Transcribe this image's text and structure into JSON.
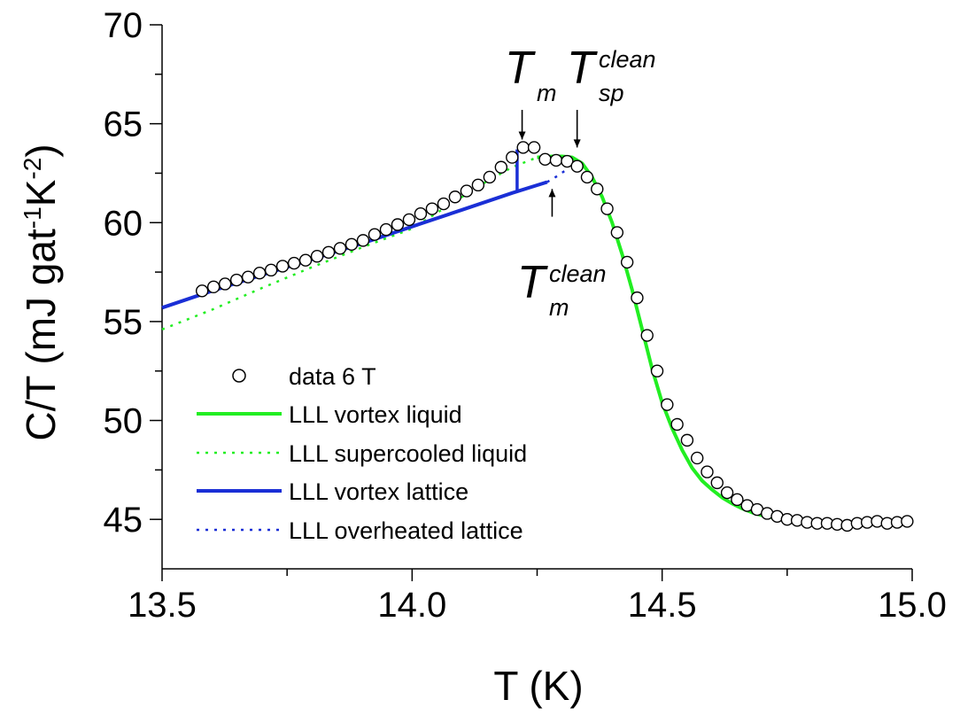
{
  "chart_data": {
    "type": "scatter",
    "xlabel": "T (K)",
    "ylabel": {
      "main": "C/T (mJ gat",
      "sup1": "-1",
      "mid": "K",
      "sup2": "-2",
      "end": ")"
    },
    "xlim": [
      13.5,
      15.0
    ],
    "ylim": [
      42.5,
      70
    ],
    "x_ticks": [
      "13.5",
      "14.0",
      "14.5",
      "15.0"
    ],
    "x_tick_values": [
      13.5,
      14.0,
      14.5,
      15.0
    ],
    "y_ticks": [
      "45",
      "50",
      "55",
      "60",
      "65",
      "70"
    ],
    "y_tick_values": [
      45,
      50,
      55,
      60,
      65,
      70
    ],
    "grid": false,
    "legend_position": "bottom-left",
    "annotations": [
      {
        "id": "tm",
        "main": "T",
        "sub": "m",
        "sup": "",
        "arrow_x": 14.22,
        "arrow_from": 65.7,
        "arrow_to": 64.2
      },
      {
        "id": "tsp",
        "main": "T",
        "sub": "sp",
        "sup": "clean",
        "arrow_x": 14.33,
        "arrow_from": 65.7,
        "arrow_to": 63.8
      },
      {
        "id": "tmclean",
        "main": "T",
        "sub": "m",
        "sup": "clean",
        "arrow_x": 14.28,
        "arrow_from": 60.3,
        "arrow_to": 61.7
      }
    ],
    "series": [
      {
        "name": "data 6 T",
        "style": "open-circle",
        "color": "#000000",
        "x": [
          13.58,
          13.603,
          13.626,
          13.649,
          13.672,
          13.695,
          13.718,
          13.741,
          13.764,
          13.787,
          13.81,
          13.833,
          13.856,
          13.879,
          13.902,
          13.925,
          13.948,
          13.971,
          13.994,
          14.017,
          14.04,
          14.063,
          14.086,
          14.109,
          14.132,
          14.155,
          14.178,
          14.2,
          14.222,
          14.244,
          14.266,
          14.288,
          14.31,
          14.33,
          14.35,
          14.37,
          14.39,
          14.41,
          14.43,
          14.45,
          14.47,
          14.49,
          14.51,
          14.53,
          14.55,
          14.57,
          14.59,
          14.61,
          14.63,
          14.65,
          14.67,
          14.69,
          14.71,
          14.73,
          14.75,
          14.77,
          14.79,
          14.81,
          14.83,
          14.85,
          14.87,
          14.89,
          14.91,
          14.93,
          14.95,
          14.97,
          14.99
        ],
        "y": [
          56.55,
          56.75,
          56.9,
          57.1,
          57.25,
          57.45,
          57.6,
          57.8,
          57.95,
          58.1,
          58.3,
          58.5,
          58.7,
          58.9,
          59.1,
          59.4,
          59.65,
          59.9,
          60.15,
          60.45,
          60.7,
          60.95,
          61.3,
          61.6,
          61.9,
          62.3,
          62.8,
          63.3,
          63.8,
          63.8,
          63.2,
          63.15,
          63.1,
          62.85,
          62.3,
          61.7,
          60.7,
          59.5,
          58.0,
          56.2,
          54.3,
          52.5,
          50.8,
          49.8,
          49.0,
          48.1,
          47.4,
          46.85,
          46.35,
          46.0,
          45.7,
          45.5,
          45.3,
          45.15,
          45.0,
          44.95,
          44.85,
          44.8,
          44.8,
          44.75,
          44.7,
          44.8,
          44.85,
          44.9,
          44.8,
          44.85,
          44.9
        ]
      },
      {
        "name": "LLL vortex liquid",
        "style": "solid",
        "color": "#22ee22",
        "x": [
          14.25,
          14.28,
          14.3,
          14.32,
          14.34,
          14.36,
          14.38,
          14.4,
          14.42,
          14.44,
          14.46,
          14.48,
          14.5,
          14.52,
          14.54,
          14.56,
          14.58,
          14.6,
          14.62,
          14.64,
          14.66,
          14.68,
          14.7,
          14.72,
          14.74,
          14.76,
          14.78,
          14.8,
          14.83
        ],
        "y": [
          63.3,
          63.35,
          63.35,
          63.3,
          63.0,
          62.3,
          61.3,
          60.0,
          58.4,
          56.6,
          54.6,
          52.6,
          50.9,
          49.6,
          48.5,
          47.6,
          46.95,
          46.5,
          46.1,
          45.8,
          45.55,
          45.35,
          45.2,
          45.1,
          45.0,
          44.95,
          44.9,
          44.85,
          44.8
        ]
      },
      {
        "name": "LLL supercooled liquid",
        "style": "dotted",
        "color": "#22ee22",
        "x": [
          13.5,
          13.6,
          13.7,
          13.8,
          13.9,
          14.0,
          14.05,
          14.1,
          14.15,
          14.2,
          14.25
        ],
        "y": [
          54.6,
          55.6,
          56.7,
          57.75,
          58.75,
          59.7,
          60.5,
          61.3,
          62.1,
          62.8,
          63.3
        ]
      },
      {
        "name": "LLL vortex lattice",
        "style": "solid",
        "color": "#1a2fd6",
        "x": [
          13.5,
          13.6,
          13.7,
          13.8,
          13.9,
          14.0,
          14.1,
          14.2,
          14.27
        ],
        "y": [
          55.7,
          56.55,
          57.35,
          58.15,
          58.95,
          59.8,
          60.65,
          61.5,
          62.05
        ]
      },
      {
        "name": "LLL overheated lattice",
        "style": "dotted",
        "color": "#1a2fd6",
        "x": [
          14.27,
          14.29,
          14.31
        ],
        "y": [
          62.05,
          62.35,
          62.7
        ]
      }
    ],
    "transition_line": {
      "x": 14.21,
      "y_from": 61.6,
      "y_to": 63.7,
      "color": "#1a2fd6"
    }
  }
}
